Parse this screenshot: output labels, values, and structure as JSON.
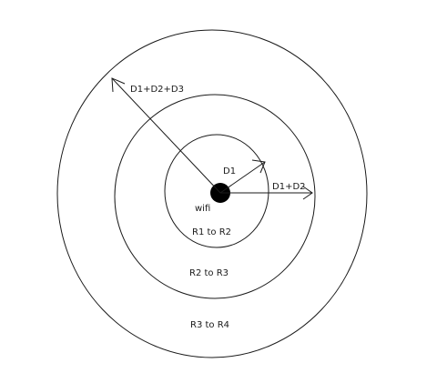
{
  "diagram": {
    "labels": {
      "center": "wifi",
      "radius_1": "D1",
      "radius_2": "D1+D2",
      "radius_3": "D1+D2+D3",
      "zone_1": "R1 to R2",
      "zone_2": "R2 to R3",
      "zone_3": "R3 to R4"
    },
    "colors": {
      "stroke": "#1a1a1a",
      "center_dot": "#000000",
      "background": "#ffffff"
    }
  }
}
